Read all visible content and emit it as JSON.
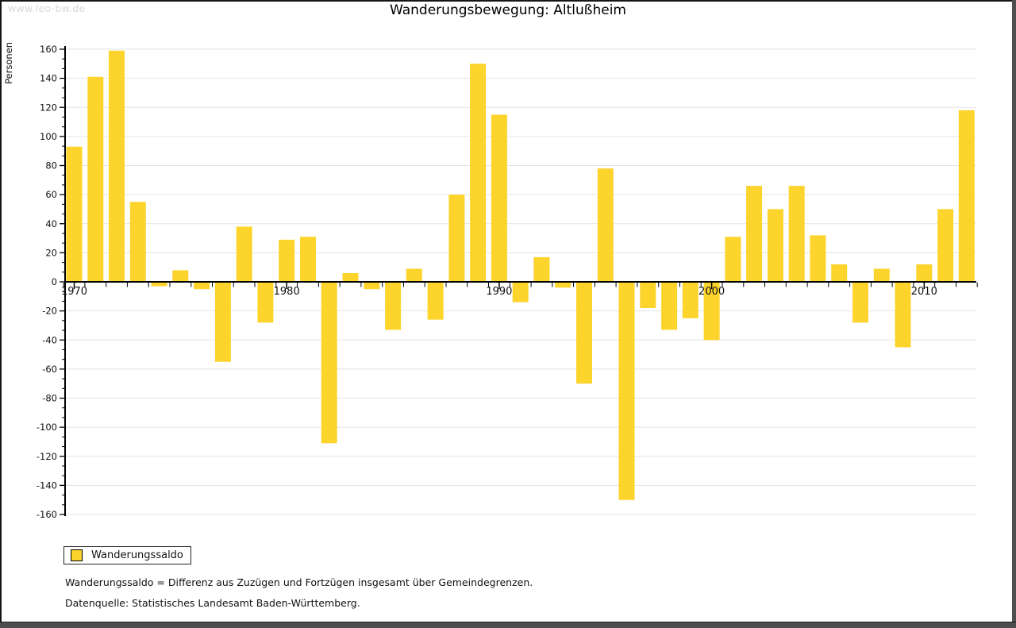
{
  "watermark": "www.leo-bw.de",
  "title": "Wanderungsbewegung: Altlußheim",
  "legend": {
    "label": "Wanderungssaldo"
  },
  "footnotes": [
    "Wanderungssaldo = Differenz aus Zuzügen und Fortzügen insgesamt über Gemeindegrenzen.",
    "Datenquelle: Statistisches Landesamt Baden-Württemberg."
  ],
  "colors": {
    "bar": "#fcd42c",
    "grid": "#e3e3e3",
    "axis": "#000000",
    "text": "#111111",
    "watermark": "#d8d8d8",
    "frame_shadow": "#4e4e4e"
  },
  "chart_data": {
    "type": "bar",
    "title": "Wanderungsbewegung: Altlußheim",
    "series_name": "Wanderungssaldo",
    "xlabel": "",
    "ylabel": "Personen",
    "ylim": [
      -160,
      160
    ],
    "y_tick_step": 20,
    "grid": true,
    "legend_position": "bottom-left",
    "x_tick_labels": [
      1970,
      1980,
      1990,
      2000,
      2010
    ],
    "years": [
      1970,
      1971,
      1972,
      1973,
      1974,
      1975,
      1976,
      1977,
      1978,
      1979,
      1980,
      1981,
      1982,
      1983,
      1984,
      1985,
      1986,
      1987,
      1988,
      1989,
      1990,
      1991,
      1992,
      1993,
      1994,
      1995,
      1996,
      1997,
      1998,
      1999,
      2000,
      2001,
      2002,
      2003,
      2004,
      2005,
      2006,
      2007,
      2008,
      2009,
      2010,
      2011,
      2012
    ],
    "values": [
      93,
      141,
      159,
      55,
      -3,
      8,
      -5,
      -55,
      38,
      -28,
      29,
      31,
      -111,
      6,
      -5,
      -33,
      9,
      -26,
      60,
      150,
      115,
      -14,
      17,
      -4,
      -70,
      78,
      -150,
      -18,
      -33,
      -25,
      -40,
      31,
      66,
      50,
      66,
      32,
      12,
      -28,
      9,
      -45,
      12,
      50,
      118
    ]
  }
}
